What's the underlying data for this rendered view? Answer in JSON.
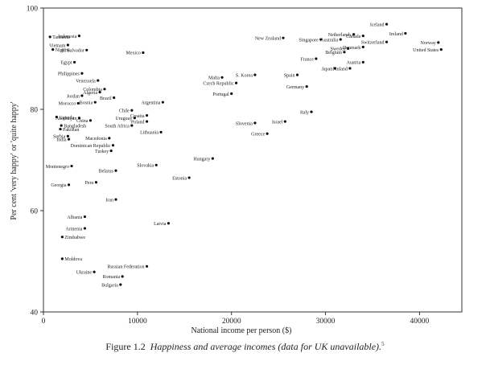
{
  "caption": {
    "figure": "Figure 1.2",
    "title": "Happiness and average incomes (data for UK unavailable).",
    "note": "5"
  },
  "chart_data": {
    "type": "scatter",
    "title": "",
    "xlabel": "National income per person ($)",
    "ylabel": "Per cent 'very happy' or 'quite happy'",
    "xlim": [
      0,
      44500
    ],
    "ylim": [
      40,
      100
    ],
    "xticks": [
      0,
      10000,
      20000,
      30000,
      40000
    ],
    "xtick_labels": [
      "0",
      "10000",
      "20000",
      "30000",
      "40000"
    ],
    "yticks": [
      40,
      60,
      80,
      100
    ],
    "ytick_labels": [
      "40",
      "60",
      "80",
      "100"
    ],
    "grid": false,
    "points": [
      {
        "label": "Tanzania",
        "x": 700,
        "y": 94.3
      },
      {
        "label": "Indonesia",
        "x": 3800,
        "y": 94.5
      },
      {
        "label": "Vietnam",
        "x": 2600,
        "y": 92.7
      },
      {
        "label": "Nigeria",
        "x": 1000,
        "y": 91.8
      },
      {
        "label": "El Salvador",
        "x": 4600,
        "y": 91.7
      },
      {
        "label": "Mexico",
        "x": 10600,
        "y": 91.2
      },
      {
        "label": "Egypt",
        "x": 3300,
        "y": 89.3
      },
      {
        "label": "Philippines",
        "x": 4100,
        "y": 87.1
      },
      {
        "label": "Venezuela",
        "x": 5800,
        "y": 85.7
      },
      {
        "label": "Algeria",
        "x": 6000,
        "y": 83.4
      },
      {
        "label": "Colombia",
        "x": 6500,
        "y": 84.0
      },
      {
        "label": "Jordan",
        "x": 4100,
        "y": 82.7
      },
      {
        "label": "Brazil",
        "x": 7500,
        "y": 82.3
      },
      {
        "label": "Morocco",
        "x": 3700,
        "y": 81.2
      },
      {
        "label": "Bosnia",
        "x": 5500,
        "y": 81.4
      },
      {
        "label": "Chile",
        "x": 9400,
        "y": 79.8
      },
      {
        "label": "Argentina",
        "x": 12700,
        "y": 81.4
      },
      {
        "label": "Croatia",
        "x": 11000,
        "y": 78.8
      },
      {
        "label": "Uruguay",
        "x": 9700,
        "y": 78.3
      },
      {
        "label": "Azerbaijan",
        "x": 3800,
        "y": 78.3
      },
      {
        "label": "China",
        "x": 5000,
        "y": 77.8
      },
      {
        "label": "Uganda",
        "x": 1400,
        "y": 78.5
      },
      {
        "label": "Bangladesh",
        "x": 1900,
        "y": 76.8
      },
      {
        "label": "Poland",
        "x": 11000,
        "y": 77.6
      },
      {
        "label": "Pakistan",
        "x": 1800,
        "y": 76.1
      },
      {
        "label": "South Africa",
        "x": 9400,
        "y": 76.8
      },
      {
        "label": "Lithuania",
        "x": 12500,
        "y": 75.5
      },
      {
        "label": "Serbia",
        "x": 2600,
        "y": 74.7
      },
      {
        "label": "India",
        "x": 2700,
        "y": 74.1
      },
      {
        "label": "Macedonia",
        "x": 7000,
        "y": 74.3
      },
      {
        "label": "Dominican Republic",
        "x": 7400,
        "y": 72.9
      },
      {
        "label": "Turkey",
        "x": 7200,
        "y": 71.8
      },
      {
        "label": "Montenegro",
        "x": 3000,
        "y": 68.8
      },
      {
        "label": "Belarus",
        "x": 7700,
        "y": 67.9
      },
      {
        "label": "Slovakia",
        "x": 12000,
        "y": 69.0
      },
      {
        "label": "Hungary",
        "x": 18000,
        "y": 70.3
      },
      {
        "label": "Estonia",
        "x": 15500,
        "y": 66.5
      },
      {
        "label": "Georgia",
        "x": 2700,
        "y": 65.1
      },
      {
        "label": "Peru",
        "x": 5600,
        "y": 65.6
      },
      {
        "label": "Iran",
        "x": 7700,
        "y": 62.2
      },
      {
        "label": "Albania",
        "x": 4400,
        "y": 58.8
      },
      {
        "label": "Latvia",
        "x": 13300,
        "y": 57.5
      },
      {
        "label": "Armenia",
        "x": 4400,
        "y": 56.5
      },
      {
        "label": "Zimbabwe",
        "x": 2000,
        "y": 54.8
      },
      {
        "label": "Moldova",
        "x": 2000,
        "y": 50.5
      },
      {
        "label": "Russian Federation",
        "x": 11000,
        "y": 49.0
      },
      {
        "label": "Ukraine",
        "x": 5400,
        "y": 47.9
      },
      {
        "label": "Romania",
        "x": 8400,
        "y": 47.0
      },
      {
        "label": "Bulgaria",
        "x": 8200,
        "y": 45.4
      },
      {
        "label": "New Zealand",
        "x": 25500,
        "y": 94.1
      },
      {
        "label": "Singapore",
        "x": 29500,
        "y": 93.8
      },
      {
        "label": "Australia",
        "x": 31600,
        "y": 93.8
      },
      {
        "label": "Netherlands",
        "x": 33000,
        "y": 94.8
      },
      {
        "label": "Canada",
        "x": 34000,
        "y": 94.5
      },
      {
        "label": "Iceland",
        "x": 36500,
        "y": 96.8
      },
      {
        "label": "Ireland",
        "x": 38500,
        "y": 95.0
      },
      {
        "label": "Switzerland",
        "x": 36500,
        "y": 93.3
      },
      {
        "label": "Sweden",
        "x": 32400,
        "y": 92.0
      },
      {
        "label": "Denmark",
        "x": 34000,
        "y": 92.3
      },
      {
        "label": "Belgium",
        "x": 32000,
        "y": 91.3
      },
      {
        "label": "Norway",
        "x": 42000,
        "y": 93.2
      },
      {
        "label": "United States",
        "x": 42300,
        "y": 91.8
      },
      {
        "label": "France",
        "x": 29000,
        "y": 90.0
      },
      {
        "label": "Austria",
        "x": 34000,
        "y": 89.3
      },
      {
        "label": "Japan",
        "x": 31000,
        "y": 88.1
      },
      {
        "label": "Finland",
        "x": 32600,
        "y": 88.1
      },
      {
        "label": "Malta",
        "x": 19000,
        "y": 86.3
      },
      {
        "label": "S. Korea",
        "x": 22500,
        "y": 86.8
      },
      {
        "label": "Czech Republic",
        "x": 20500,
        "y": 85.2
      },
      {
        "label": "Spain",
        "x": 27000,
        "y": 86.8
      },
      {
        "label": "Germany",
        "x": 28000,
        "y": 84.5
      },
      {
        "label": "Portugal",
        "x": 20000,
        "y": 83.1
      },
      {
        "label": "Italy",
        "x": 28500,
        "y": 79.5
      },
      {
        "label": "Slovenia",
        "x": 22500,
        "y": 77.3
      },
      {
        "label": "Israel",
        "x": 25700,
        "y": 77.6
      },
      {
        "label": "Greece",
        "x": 23800,
        "y": 75.2
      }
    ]
  }
}
